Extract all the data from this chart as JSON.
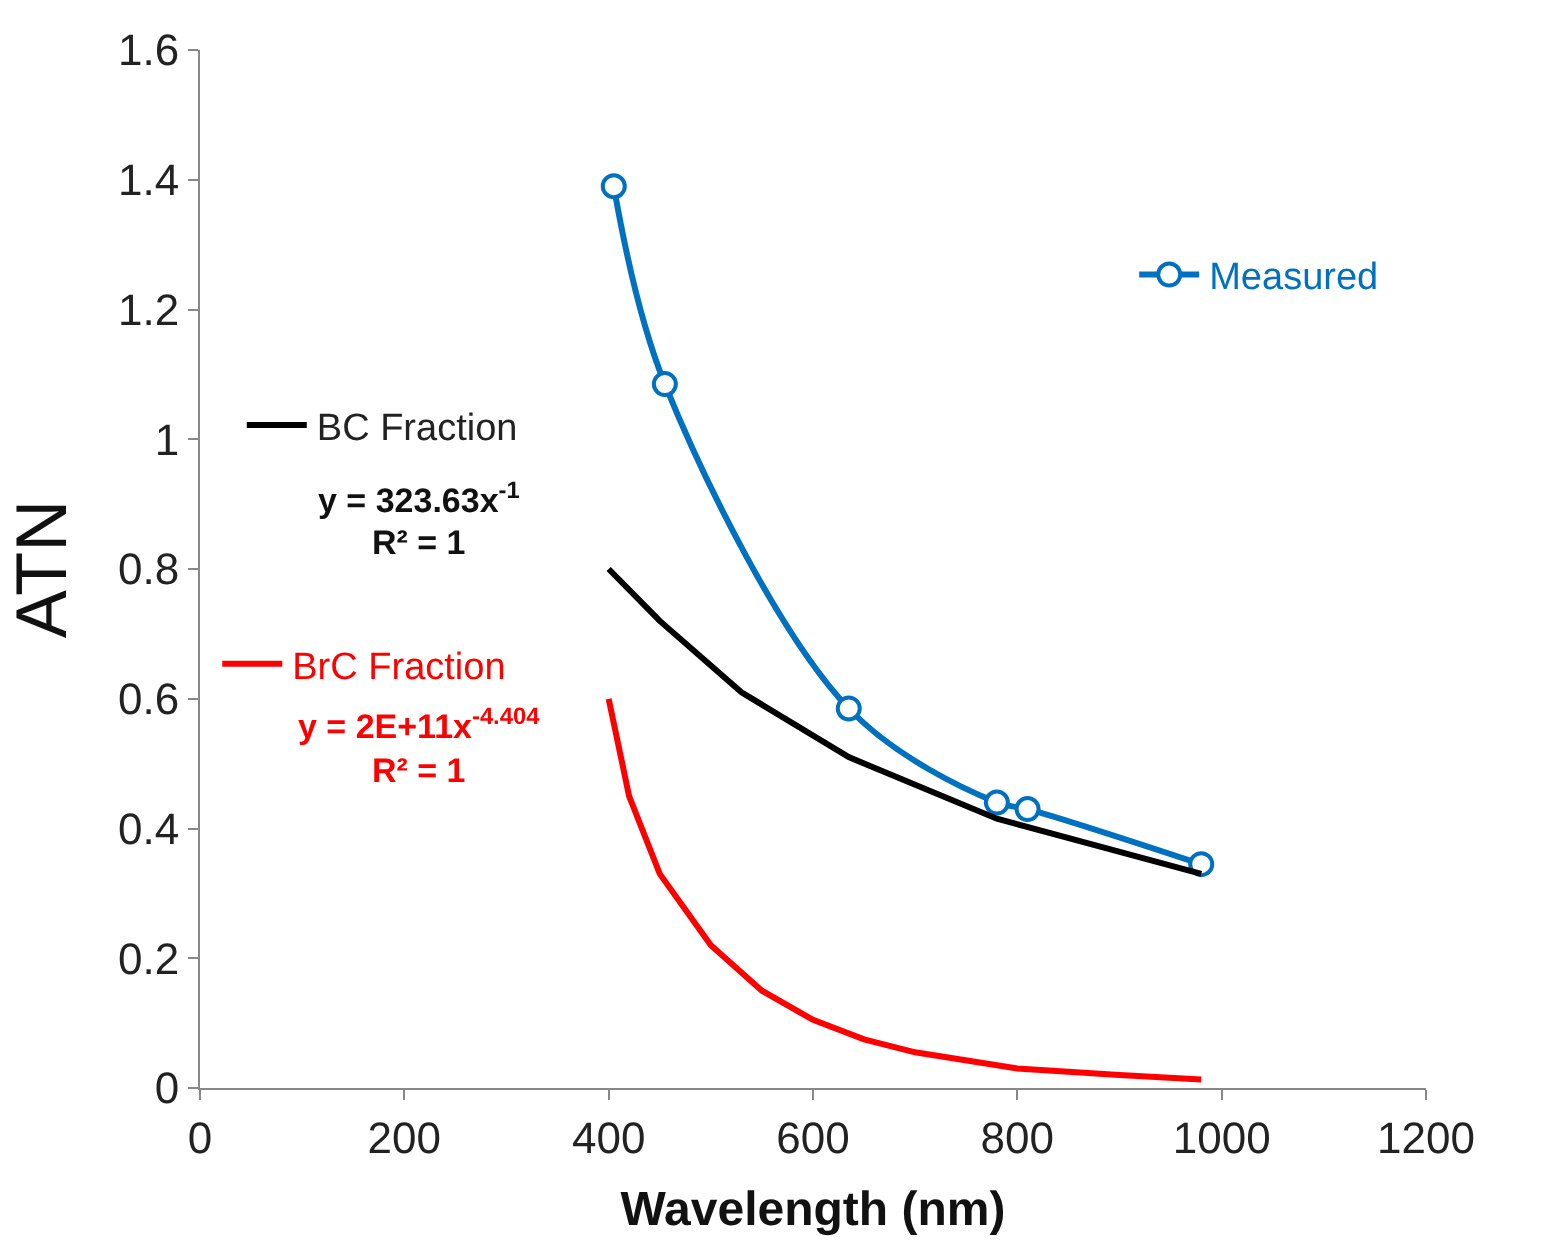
{
  "chart_data": {
    "type": "line",
    "xlabel": "Wavelength (nm)",
    "ylabel": "ATN",
    "xlim": [
      0,
      1200
    ],
    "xticks": [
      0,
      200,
      400,
      600,
      800,
      1000,
      1200
    ],
    "ylim": [
      0,
      1.6
    ],
    "yticks": [
      0,
      {
        "value": 0.2,
        "label": "0.2"
      },
      {
        "value": 0.4,
        "label": "0.4"
      },
      {
        "value": 0.6,
        "label": "0.6"
      },
      {
        "value": 0.8,
        "label": "0.8"
      },
      1,
      {
        "value": 1.2,
        "label": "1.2"
      },
      {
        "value": 1.4,
        "label": "1.4"
      },
      {
        "value": 1.6,
        "label": "1.6"
      }
    ],
    "legend": "top right",
    "line_style": "solid",
    "series": [
      {
        "name": "Measured",
        "color": "#0070c0",
        "marker": "circle",
        "x": [
          405,
          455,
          635,
          780,
          810,
          980
        ],
        "values": [
          1.39,
          1.085,
          0.585,
          0.44,
          0.43,
          0.345
        ]
      },
      {
        "name": "BC Fraction",
        "color": "#000000",
        "marker": "none",
        "x": [
          400,
          450,
          530,
          635,
          780,
          980
        ],
        "values": [
          0.8,
          0.72,
          0.61,
          0.51,
          0.415,
          0.33
        ]
      },
      {
        "name": "BrC Fraction",
        "color": "#ff0000",
        "marker": "none",
        "x": [
          400,
          420,
          450,
          500,
          550,
          600,
          650,
          700,
          800,
          900,
          980
        ],
        "values": [
          0.6,
          0.45,
          0.33,
          0.22,
          0.15,
          0.105,
          0.075,
          0.055,
          0.03,
          0.02,
          0.013
        ]
      }
    ],
    "annotations": [
      "y = 323.63x$^{-1}$",
      "R² = 1",
      "y = 2E+11x$^{-4.404}$",
      "R² = 1"
    ]
  }
}
